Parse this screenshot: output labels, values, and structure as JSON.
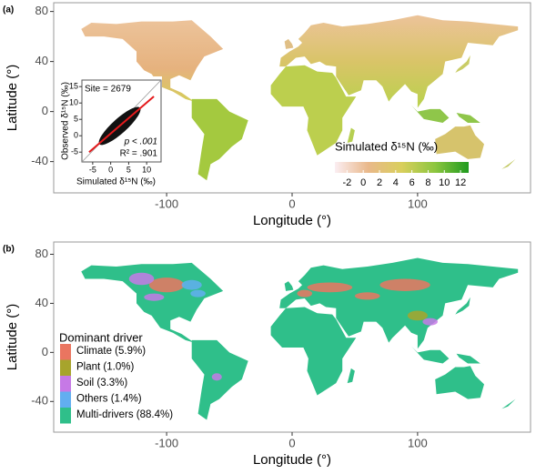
{
  "panels": [
    {
      "label": "(a)",
      "xlabel": "Longitude (°)",
      "ylabel": "Latitude (°)",
      "xlim": [
        -190,
        190
      ],
      "ylim": [
        -65,
        87
      ],
      "xticks": [
        -100,
        0,
        100
      ],
      "yticks": [
        -40,
        0,
        40,
        80
      ],
      "inset": {
        "annotation": "Site = 2679",
        "p": "p < .001",
        "r2": "R² = .901",
        "xlabel": "Simulated δ¹⁵N (‰)",
        "ylabel": "Observed δ¹⁵N (‰)",
        "xlim": [
          -8,
          14
        ],
        "ylim": [
          -8,
          17
        ],
        "xticks": [
          -5,
          0,
          5,
          10
        ],
        "yticks": [
          -5,
          0,
          5,
          10,
          15
        ]
      },
      "colorbar": {
        "title": "Simulated δ¹⁵N (‰)",
        "lim": [
          -3.5,
          13
        ],
        "ticks": [
          -2,
          0,
          2,
          4,
          6,
          8,
          10,
          12
        ],
        "colors": [
          "#fbeef2",
          "#e9b88a",
          "#d9cf5c",
          "#8cc63f",
          "#1f9a1f"
        ]
      }
    },
    {
      "label": "(b)",
      "xlabel": "Longitude (°)",
      "ylabel": "Latitude (°)",
      "xlim": [
        -190,
        190
      ],
      "ylim": [
        -65,
        90
      ],
      "xticks": [
        -100,
        0,
        100
      ],
      "yticks": [
        -40,
        0,
        40,
        80
      ],
      "legend": {
        "title": "Dominant driver",
        "items": [
          {
            "label": "Climate (5.9%)",
            "color": "#ea7560"
          },
          {
            "label": "Plant (1.0%)",
            "color": "#a7a42c"
          },
          {
            "label": "Soil (3.3%)",
            "color": "#c679e6"
          },
          {
            "label": "Others (1.4%)",
            "color": "#62aef0"
          },
          {
            "label": "Multi-drivers (88.4%)",
            "color": "#2fbf8a"
          }
        ]
      }
    }
  ]
}
